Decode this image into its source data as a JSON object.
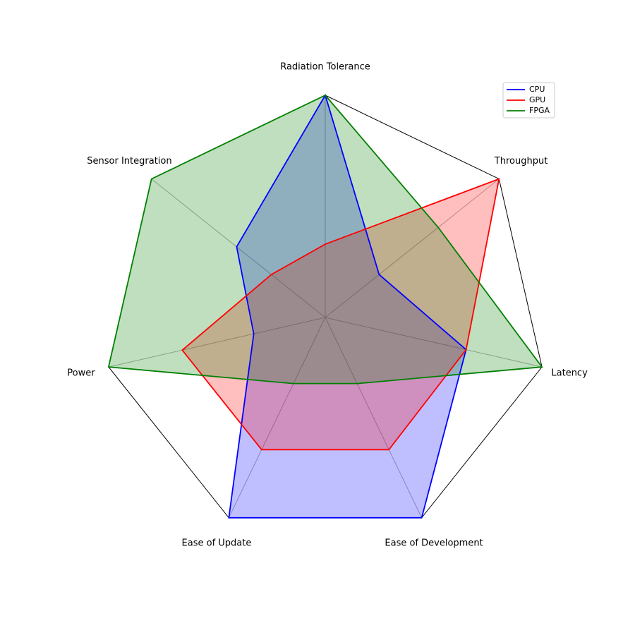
{
  "chart_data": {
    "type": "radar",
    "axes": [
      "Radiation Tolerance",
      "Throughput",
      "Latency",
      "Ease of Development",
      "Ease of Update",
      "Power",
      "Sensor Integration"
    ],
    "range": [
      0,
      1
    ],
    "series": [
      {
        "name": "CPU",
        "color": "#0000ff",
        "values": [
          1.0,
          0.31,
          0.65,
          1.0,
          1.0,
          0.33,
          0.51
        ]
      },
      {
        "name": "GPU",
        "color": "#ff0000",
        "values": [
          0.33,
          1.0,
          0.65,
          0.66,
          0.66,
          0.66,
          0.31
        ]
      },
      {
        "name": "FPGA",
        "color": "#008000",
        "values": [
          1.0,
          0.65,
          1.0,
          0.33,
          0.33,
          1.0,
          1.0
        ]
      }
    ],
    "legend": {
      "position": "top-right"
    },
    "grid": true
  }
}
